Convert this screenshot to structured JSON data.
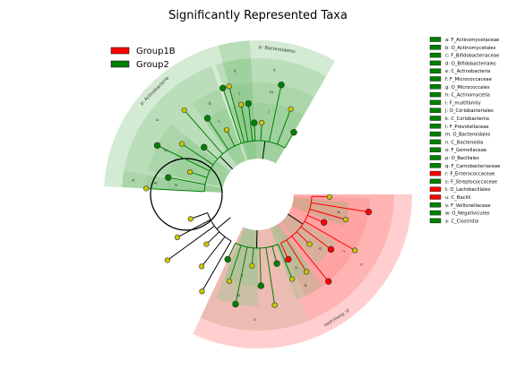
{
  "chart_data": {
    "type": "cladogram",
    "title": "Significantly Represented Taxa",
    "legend": {
      "placement": "upper-left",
      "items": [
        {
          "name": "Group1B",
          "color": "#ff0000"
        },
        {
          "name": "Group2",
          "color": "#008000"
        }
      ]
    },
    "colors": {
      "Group1B": "#ff0000",
      "Group2": "#008000",
      "nonsignificant_node": "#c8c800",
      "group1b_shade": "#ff8080",
      "group2_shade": "#8cc88c",
      "brown_shade": "#c89678"
    },
    "key": [
      {
        "letter": "a",
        "label": "a: F_Actinomycetaceae",
        "group": "Group2"
      },
      {
        "letter": "b",
        "label": "b: O_Actinomycetales",
        "group": "Group2"
      },
      {
        "letter": "c",
        "label": "c: F_Bifidobacteriaceae",
        "group": "Group2"
      },
      {
        "letter": "d",
        "label": "d: O_Bifidobacteriales",
        "group": "Group2"
      },
      {
        "letter": "e",
        "label": "e: C_Actinobacteria",
        "group": "Group2"
      },
      {
        "letter": "f",
        "label": "f: F_Micrococcaceae",
        "group": "Group2"
      },
      {
        "letter": "g",
        "label": "g: O_Micrococcales",
        "group": "Group2"
      },
      {
        "letter": "h",
        "label": "h: C_Actinomycetia",
        "group": "Group2"
      },
      {
        "letter": "i",
        "label": "i: F_multifamily",
        "group": "Group2"
      },
      {
        "letter": "j",
        "label": "j: O_Coriobacteriales",
        "group": "Group2"
      },
      {
        "letter": "k",
        "label": "k: C_Coriobacteriia",
        "group": "Group2"
      },
      {
        "letter": "l",
        "label": "l: F_Prevotellaceae",
        "group": "Group2"
      },
      {
        "letter": "m",
        "label": "m: O_Bacteroidales",
        "group": "Group2"
      },
      {
        "letter": "n",
        "label": "n: C_Bacteroidia",
        "group": "Group2"
      },
      {
        "letter": "o",
        "label": "o: F_Gemellaceae",
        "group": "Group2"
      },
      {
        "letter": "p",
        "label": "p: O_Bacillales",
        "group": "Group2"
      },
      {
        "letter": "q",
        "label": "q: F_Carnobacteriaceae",
        "group": "Group2"
      },
      {
        "letter": "r",
        "label": "r: F_Enterococcaceae",
        "group": "Group1B"
      },
      {
        "letter": "s",
        "label": "s: F_Streptococcaceae",
        "group": "Group2"
      },
      {
        "letter": "t",
        "label": "t: O_Lactobacillales",
        "group": "Group1B"
      },
      {
        "letter": "u",
        "label": "u: C_Bacilli",
        "group": "Group1B"
      },
      {
        "letter": "v",
        "label": "v: F_Veillonellaceae",
        "group": "Group2"
      },
      {
        "letter": "w",
        "label": "w: O_Negativicutes",
        "group": "Group2"
      },
      {
        "letter": "x",
        "label": "x: C_Clostridia",
        "group": "Group2"
      }
    ],
    "phylum_labels": [
      "p: Bacteroidetes",
      "p: Actinobacteria",
      "p: Firmicutes"
    ],
    "clades": [
      {
        "label": "l",
        "group": "Group2",
        "start_deg": 60,
        "end_deg": 105,
        "level": 3
      },
      {
        "label": "m",
        "group": "Group2",
        "start_deg": 60,
        "end_deg": 105,
        "level": 4
      },
      {
        "label": "n",
        "group": "Group2",
        "start_deg": 60,
        "end_deg": 105,
        "level": 5
      },
      {
        "label": "p: Bacteroidetes",
        "group": "Group2",
        "start_deg": 60,
        "end_deg": 105,
        "level": 6
      },
      {
        "label": "i",
        "group": "Group2",
        "start_deg": 93,
        "end_deg": 108,
        "level": 3
      },
      {
        "label": "j",
        "group": "Group2",
        "start_deg": 93,
        "end_deg": 108,
        "level": 4
      },
      {
        "label": "k",
        "group": "Group2",
        "start_deg": 93,
        "end_deg": 108,
        "level": 5
      },
      {
        "label": "c",
        "group": "Group2",
        "start_deg": 110,
        "end_deg": 126,
        "level": 3
      },
      {
        "label": "d",
        "group": "Group2",
        "start_deg": 110,
        "end_deg": 126,
        "level": 4
      },
      {
        "label": "p: Actinobacteria",
        "group": "Group2",
        "start_deg": 93,
        "end_deg": 177,
        "level": 6
      },
      {
        "label": "f",
        "group": "Group2",
        "start_deg": 141,
        "end_deg": 168,
        "level": 3
      },
      {
        "label": "g",
        "group": "Group2",
        "start_deg": 141,
        "end_deg": 168,
        "level": 4
      },
      {
        "label": "e",
        "group": "Group2",
        "start_deg": 110,
        "end_deg": 177,
        "level": 5
      },
      {
        "label": "a",
        "group": "Group2",
        "start_deg": 170,
        "end_deg": 177,
        "level": 3
      },
      {
        "label": "b",
        "group": "Group2",
        "start_deg": 170,
        "end_deg": 177,
        "level": 4
      },
      {
        "label": "h",
        "group": "Group2",
        "start_deg": 170,
        "end_deg": 177,
        "level": 5
      },
      {
        "label": "r",
        "group": "Group1B",
        "start_deg": 340,
        "end_deg": 355,
        "level": 3
      },
      {
        "label": "s",
        "group": "Group2",
        "start_deg": 340,
        "end_deg": 355,
        "level": 3
      },
      {
        "label": "q",
        "group": "Group2",
        "start_deg": 310,
        "end_deg": 328,
        "level": 3
      },
      {
        "label": "t",
        "group": "Group1B",
        "start_deg": 295,
        "end_deg": 358,
        "level": 4
      },
      {
        "label": "o",
        "group": "Group2",
        "start_deg": 290,
        "end_deg": 305,
        "level": 3
      },
      {
        "label": "p",
        "group": "Group2",
        "start_deg": 290,
        "end_deg": 305,
        "level": 4
      },
      {
        "label": "u",
        "group": "Group1B",
        "start_deg": 292,
        "end_deg": 360,
        "level": 5
      },
      {
        "label": "v",
        "group": "Group2",
        "start_deg": 248,
        "end_deg": 270,
        "level": 3
      },
      {
        "label": "w",
        "group": "Group2",
        "start_deg": 248,
        "end_deg": 270,
        "level": 4
      },
      {
        "label": "x",
        "group": "Brown",
        "start_deg": 245,
        "end_deg": 292,
        "level": 5
      },
      {
        "label": "p: Firmicutes",
        "group": "Group1B",
        "start_deg": 245,
        "end_deg": 360,
        "level": 6
      }
    ]
  }
}
